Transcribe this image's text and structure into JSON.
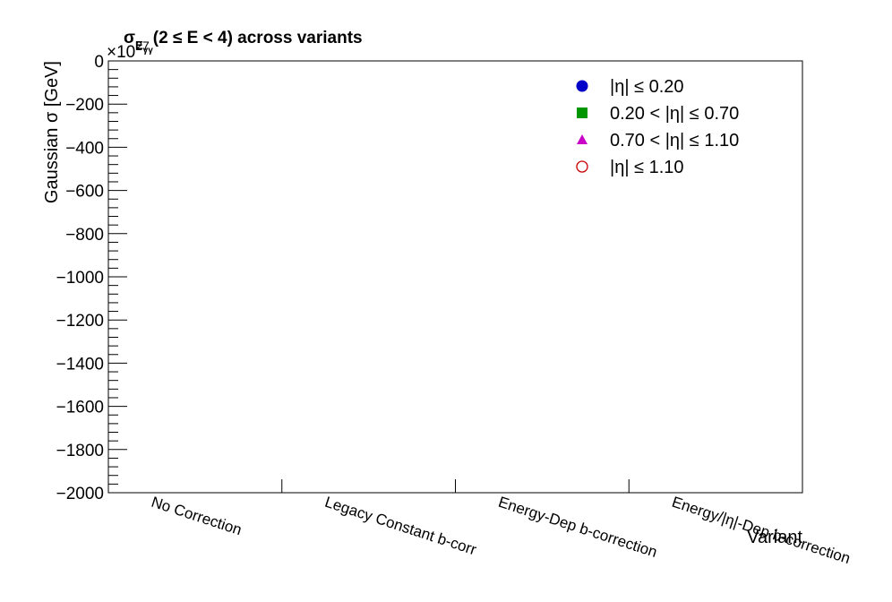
{
  "chart_data": {
    "type": "scatter",
    "title": "σ_{E_{γγ}}(2 ≤ E < 4) across variants",
    "title_main": "σ",
    "title_sub": "E",
    "title_subsub": "γγ",
    "title_rest": "(2 ≤ E < 4) across variants",
    "xlabel": "Variant",
    "ylabel": "Gaussian σ  [GeV]",
    "exponent_label": "×10",
    "exponent_value": "27",
    "categories": [
      "No Correction",
      "Legacy Constant b-corr",
      "Energy-Dep b-correction",
      "Energy/|η|-Dep b-correction"
    ],
    "ylim": [
      -2000,
      0
    ],
    "y_ticks": [
      0,
      -200,
      -400,
      -600,
      -800,
      -1000,
      -1200,
      -1400,
      -1600,
      -1800,
      -2000
    ],
    "y_tick_labels": [
      "0",
      "−200",
      "−400",
      "−600",
      "−800",
      "−1000",
      "−1200",
      "−1400",
      "−1600",
      "−1800",
      "−2000"
    ],
    "series": [
      {
        "name": "|η| ≤ 0.20",
        "marker": "circle",
        "color": "#0000c8",
        "values": []
      },
      {
        "name": "0.20 < |η| ≤ 0.70",
        "marker": "square",
        "color": "#009600",
        "values": []
      },
      {
        "name": "0.70 < |η| ≤ 1.10",
        "marker": "triangle",
        "color": "#c800c8",
        "values": []
      },
      {
        "name": "|η| ≤ 1.10",
        "marker": "open-circle",
        "color": "#c80000",
        "values": []
      }
    ],
    "legend_position": "top-right",
    "grid": false
  }
}
